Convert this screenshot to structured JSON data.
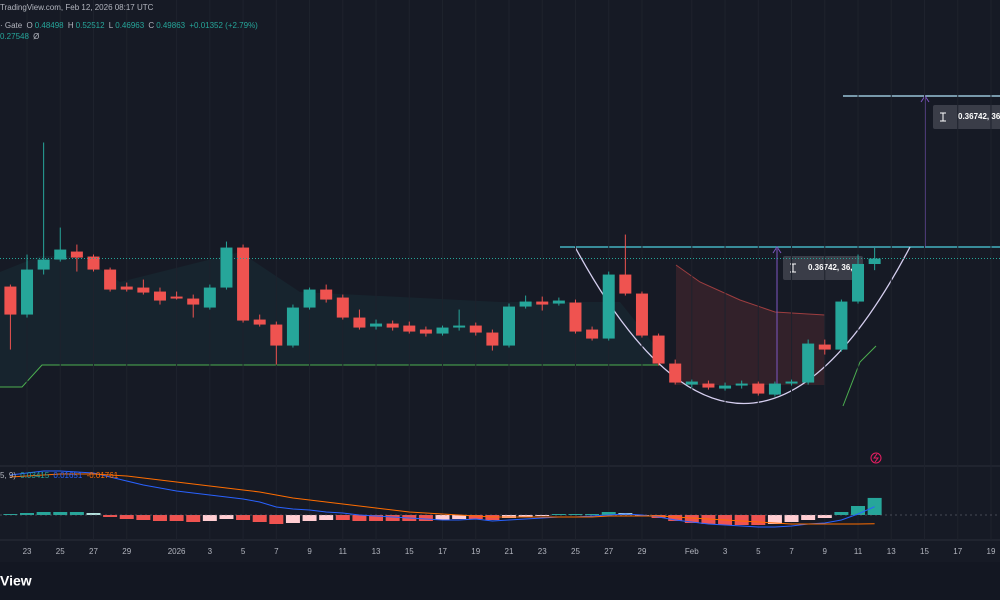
{
  "header": {
    "source": "TradingView.com, Feb 12, 2026 08:17 UTC",
    "symbol": "· Gate",
    "change": "+0.01352 (+2.79%)",
    "indicator_value": "0.27548",
    "indicator_suffix": "Ø"
  },
  "footer": {
    "brand": "View"
  },
  "chart_data": [
    {
      "type": "candlestick",
      "ohlc_labels": [
        "O",
        "H",
        "L",
        "C"
      ],
      "categories": [
        null,
        "23",
        null,
        "25",
        null,
        "27",
        null,
        "29",
        null,
        null,
        "2026",
        null,
        "3",
        null,
        "5",
        null,
        "7",
        null,
        "9",
        null,
        "11",
        null,
        "13",
        null,
        "15",
        null,
        "17",
        null,
        "19",
        null,
        "21",
        null,
        "23",
        null,
        "25",
        null,
        "27",
        null,
        "29",
        null,
        null,
        "Feb",
        null,
        "3",
        null,
        "5",
        null,
        "7",
        null,
        "9",
        null,
        "11",
        null,
        "13",
        null,
        "15",
        null,
        "17",
        null,
        "19"
      ],
      "open": [
        0.4286,
        0.3586,
        0.4711,
        0.4961,
        0.5161,
        0.5036,
        0.4711,
        0.4286,
        0.4261,
        0.4161,
        0.4036,
        0.3986,
        0.3761,
        0.4261,
        0.5261,
        0.3461,
        0.3336,
        0.2811,
        0.3761,
        0.4211,
        0.4011,
        0.3511,
        0.3286,
        0.3361,
        0.3311,
        0.3211,
        0.3111,
        0.3261,
        0.3311,
        0.3136,
        0.2811,
        0.3786,
        0.3911,
        0.3861,
        0.3886,
        0.3211,
        0.2986,
        0.4586,
        0.4111,
        0.3061,
        0.2361,
        0.1836,
        0.1861,
        0.1736,
        0.1811,
        0.1861,
        0.1586,
        0.1861,
        0.1886,
        0.2836,
        0.2711,
        0.3911,
        0.48498,
        null,
        null,
        null,
        null,
        null,
        null,
        null
      ],
      "high": [
        0.4336,
        0.5086,
        0.7886,
        0.5761,
        0.5336,
        0.5086,
        0.4761,
        0.4386,
        0.4461,
        0.4261,
        0.4161,
        0.4086,
        0.4336,
        0.5411,
        0.5336,
        0.3586,
        0.3411,
        0.3836,
        0.4261,
        0.4336,
        0.4086,
        0.3711,
        0.3461,
        0.3436,
        0.3411,
        0.3286,
        0.3311,
        0.3711,
        0.3386,
        0.3211,
        0.3861,
        0.4061,
        0.4036,
        0.4011,
        0.3961,
        0.3286,
        0.4661,
        0.5586,
        0.4161,
        0.3111,
        0.2461,
        0.1961,
        0.1936,
        0.1886,
        0.1936,
        0.1911,
        0.1911,
        0.1961,
        0.2961,
        0.2961,
        0.3961,
        0.5086,
        0.52512,
        null,
        null,
        null,
        null,
        null,
        null,
        null
      ],
      "low": [
        0.2711,
        0.3511,
        0.4586,
        0.4911,
        0.4661,
        0.4661,
        0.4161,
        0.4161,
        0.4086,
        0.3836,
        0.3961,
        0.3511,
        0.3711,
        0.4211,
        0.3386,
        0.3286,
        0.2336,
        0.2761,
        0.3711,
        0.3886,
        0.3461,
        0.3211,
        0.3211,
        0.3186,
        0.3111,
        0.3036,
        0.3061,
        0.3186,
        0.3061,
        0.2686,
        0.2761,
        0.3736,
        0.3686,
        0.3811,
        0.3111,
        0.2936,
        0.2936,
        0.4061,
        0.3011,
        0.2311,
        0.1836,
        0.1761,
        0.1711,
        0.1686,
        0.1736,
        0.1561,
        0.1536,
        0.1811,
        0.1836,
        0.2586,
        0.2661,
        0.3861,
        0.46963,
        null,
        null,
        null,
        null,
        null,
        null,
        null
      ],
      "close": [
        0.3586,
        0.4711,
        0.4961,
        0.5211,
        0.5011,
        0.4711,
        0.4211,
        0.4211,
        0.4136,
        0.3936,
        0.3986,
        0.3836,
        0.4261,
        0.5261,
        0.3436,
        0.3336,
        0.2811,
        0.3761,
        0.4211,
        0.3961,
        0.3511,
        0.3261,
        0.3361,
        0.3261,
        0.3161,
        0.3111,
        0.3261,
        0.3311,
        0.3136,
        0.2811,
        0.3786,
        0.3911,
        0.3836,
        0.3936,
        0.3161,
        0.2986,
        0.4586,
        0.4111,
        0.3061,
        0.2361,
        0.1886,
        0.1911,
        0.1761,
        0.1811,
        0.1861,
        0.1611,
        0.1861,
        0.1911,
        0.2861,
        0.2711,
        0.3911,
        0.4851,
        0.49863,
        null,
        null,
        null,
        null,
        null,
        null,
        null
      ],
      "up_color": "#26a69a",
      "down_color": "#ef5350",
      "ylim": [
        0,
        1.1
      ],
      "annotations": [
        "0.36742, 36,",
        "0.36742, 36,"
      ]
    },
    {
      "type": "macd",
      "title": "5, 9)",
      "histogram": [
        0.002,
        0.004,
        0.006,
        0.006,
        0.006,
        0.004,
        -0.004,
        -0.008,
        -0.01,
        -0.012,
        -0.012,
        -0.014,
        -0.012,
        -0.008,
        -0.01,
        -0.014,
        -0.018,
        -0.016,
        -0.012,
        -0.01,
        -0.01,
        -0.012,
        -0.012,
        -0.012,
        -0.012,
        -0.012,
        -0.01,
        -0.008,
        -0.008,
        -0.01,
        -0.006,
        -0.004,
        -0.002,
        0.002,
        0.002,
        0.002,
        0.006,
        0.004,
        -0.002,
        -0.006,
        -0.012,
        -0.016,
        -0.018,
        -0.02,
        -0.02,
        -0.02,
        -0.018,
        -0.014,
        -0.01,
        -0.006,
        0.006,
        0.018,
        0.03415,
        null,
        null,
        null,
        null,
        null,
        null,
        null
      ],
      "macd": [
        0.08,
        0.084,
        0.088,
        0.088,
        0.086,
        0.084,
        0.076,
        0.068,
        0.06,
        0.054,
        0.048,
        0.044,
        0.04,
        0.036,
        0.032,
        0.026,
        0.016,
        0.012,
        0.01,
        0.006,
        0.004,
        0,
        -0.002,
        -0.004,
        -0.006,
        -0.008,
        -0.01,
        -0.01,
        -0.008,
        -0.012,
        -0.01,
        -0.008,
        -0.006,
        -0.004,
        -0.004,
        -0.002,
        0,
        0.002,
        0,
        -0.004,
        -0.01,
        -0.014,
        -0.018,
        -0.02,
        -0.022,
        -0.024,
        -0.024,
        -0.022,
        -0.018,
        -0.016,
        -0.01,
        0.002,
        0.01651,
        null,
        null,
        null,
        null,
        null,
        null,
        null
      ],
      "signal": [
        0.076,
        0.078,
        0.08,
        0.082,
        0.082,
        0.082,
        0.08,
        0.078,
        0.074,
        0.07,
        0.066,
        0.062,
        0.058,
        0.054,
        0.05,
        0.046,
        0.04,
        0.034,
        0.03,
        0.026,
        0.022,
        0.018,
        0.014,
        0.01,
        0.006,
        0.004,
        0.002,
        0,
        -0.002,
        -0.004,
        -0.004,
        -0.004,
        -0.004,
        -0.004,
        -0.004,
        -0.004,
        -0.002,
        -0.002,
        -0.002,
        -0.002,
        -0.004,
        -0.006,
        -0.008,
        -0.01,
        -0.012,
        -0.014,
        -0.016,
        -0.018,
        -0.018,
        -0.018,
        -0.018,
        -0.018,
        -0.01761,
        null,
        null,
        null,
        null,
        null,
        null,
        null
      ],
      "hist_colors": [
        "#26a69a",
        "#b2dfdb",
        "#ef5350",
        "#ffcdd2"
      ],
      "macd_color": "#2962ff",
      "signal_color": "#ff6d00",
      "ylim": [
        -0.06,
        0.094
      ]
    }
  ]
}
